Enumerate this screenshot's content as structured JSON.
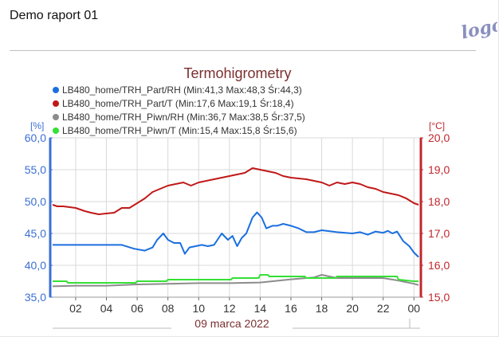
{
  "report": {
    "title": "Demo raport 01",
    "logo_text": "logo"
  },
  "colors": {
    "rh_part": "#1a6fe0",
    "t_part": "#c01818",
    "rh_piwn": "#8c8c8c",
    "t_piwn": "#35e035",
    "left_axis": "#3b6fd6",
    "right_axis": "#c1272d",
    "title": "#7b2f2f"
  },
  "chart_data": {
    "type": "line",
    "title": "Termohigrometry",
    "date_label": "09 marca 2022",
    "left_axis": {
      "unit": "[%]",
      "ylim": [
        35,
        60
      ],
      "ticks": [
        "35,0",
        "40,0",
        "45,0",
        "50,0",
        "55,0",
        "60,0"
      ]
    },
    "right_axis": {
      "unit": "[°C]",
      "ylim": [
        15,
        20
      ],
      "ticks": [
        "15,0",
        "16,0",
        "17,0",
        "18,0",
        "19,0",
        "20,0"
      ]
    },
    "x_axis": {
      "range_hours": [
        0.5,
        24.4
      ],
      "tick_labels": [
        "02",
        "04",
        "06",
        "08",
        "10",
        "12",
        "14",
        "16",
        "18",
        "20",
        "22",
        "00"
      ],
      "tick_hours": [
        2,
        4,
        6,
        8,
        10,
        12,
        14,
        16,
        18,
        20,
        22,
        24
      ]
    },
    "grid": true,
    "series": [
      {
        "name": "LB480_home/TRH_Part/RH (Min:41,3 Max:48,3 Śr:44,3)",
        "axis": "left",
        "color": "#1a6fe0",
        "x": [
          0.5,
          5.0,
          5.8,
          6.5,
          7.0,
          7.3,
          7.7,
          8.0,
          8.4,
          8.8,
          9.1,
          9.4,
          9.8,
          10.2,
          10.6,
          11.0,
          11.5,
          11.9,
          12.2,
          12.5,
          12.8,
          13.1,
          13.5,
          13.8,
          14.1,
          14.4,
          14.8,
          15.1,
          15.5,
          16.0,
          16.5,
          17.0,
          17.5,
          18.0,
          19.0,
          20.0,
          20.5,
          21.0,
          21.5,
          22.0,
          22.3,
          22.6,
          22.9,
          23.3,
          23.7,
          24.0,
          24.3
        ],
        "y": [
          43.2,
          43.2,
          42.6,
          42.3,
          42.8,
          44.0,
          45.0,
          44.0,
          43.5,
          43.5,
          41.8,
          42.8,
          43.0,
          43.2,
          43.0,
          43.2,
          45.0,
          44.0,
          44.6,
          43.0,
          44.3,
          45.0,
          47.5,
          48.3,
          47.5,
          45.8,
          46.2,
          46.2,
          46.5,
          46.2,
          45.8,
          45.2,
          45.2,
          45.5,
          45.2,
          45.0,
          45.2,
          44.8,
          45.3,
          45.1,
          45.4,
          45.0,
          45.3,
          43.8,
          43.0,
          42.0,
          41.3
        ]
      },
      {
        "name": "LB480_home/TRH_Part/T (Min:17,6 Max:19,1 Śr:18,4)",
        "axis": "right",
        "color": "#c01818",
        "x": [
          0.5,
          0.8,
          1.2,
          2.0,
          2.6,
          3.0,
          3.5,
          4.5,
          5.0,
          5.5,
          6.0,
          6.5,
          7.0,
          7.5,
          8.0,
          8.5,
          9.0,
          9.5,
          10.0,
          11.0,
          12.0,
          13.0,
          13.5,
          14.0,
          15.0,
          15.5,
          16.0,
          17.0,
          18.0,
          18.5,
          19.0,
          19.5,
          20.0,
          20.5,
          21.0,
          21.5,
          22.0,
          23.0,
          23.5,
          24.0,
          24.3
        ],
        "y": [
          17.9,
          17.85,
          17.85,
          17.8,
          17.7,
          17.65,
          17.6,
          17.65,
          17.8,
          17.8,
          17.95,
          18.1,
          18.3,
          18.4,
          18.5,
          18.55,
          18.6,
          18.5,
          18.6,
          18.7,
          18.8,
          18.9,
          19.05,
          19.0,
          18.9,
          18.8,
          18.75,
          18.7,
          18.6,
          18.5,
          18.6,
          18.55,
          18.6,
          18.55,
          18.45,
          18.4,
          18.3,
          18.2,
          18.1,
          17.95,
          17.9
        ]
      },
      {
        "name": "LB480_home/TRH_Piwn/RH (Min:36,7 Max:38,5 Śr:37,5)",
        "axis": "left",
        "color": "#8c8c8c",
        "x": [
          0.5,
          2.0,
          4.0,
          6.0,
          8.0,
          10.0,
          12.0,
          14.0,
          16.0,
          17.5,
          18.0,
          19.0,
          20.0,
          21.0,
          22.0,
          22.5,
          23.0,
          24.0,
          24.3
        ],
        "y": [
          36.7,
          36.8,
          36.8,
          37.0,
          37.1,
          37.2,
          37.2,
          37.3,
          37.8,
          38.1,
          38.5,
          38.0,
          38.0,
          38.0,
          38.0,
          37.8,
          37.6,
          37.1,
          36.9
        ]
      },
      {
        "name": "LB480_home/TRH_Piwn/T (Min:15,4 Max:15,8 Śr:15,6)",
        "axis": "right",
        "color": "#35e035",
        "x": [
          0.5,
          1.4,
          1.5,
          5.9,
          6.0,
          7.9,
          8.0,
          12.1,
          12.2,
          13.9,
          14.0,
          14.5,
          14.6,
          16.9,
          17.0,
          18.9,
          19.0,
          22.9,
          23.0,
          24.0,
          24.3
        ],
        "y": [
          15.5,
          15.5,
          15.45,
          15.45,
          15.5,
          15.5,
          15.55,
          15.55,
          15.6,
          15.6,
          15.7,
          15.7,
          15.65,
          15.65,
          15.6,
          15.6,
          15.65,
          15.65,
          15.55,
          15.5,
          15.5
        ]
      }
    ]
  }
}
